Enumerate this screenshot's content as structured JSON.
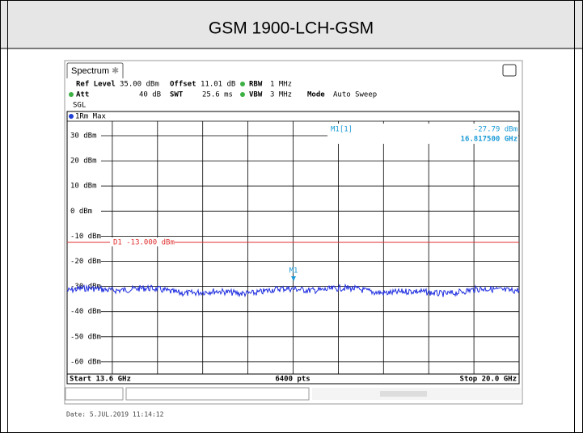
{
  "header": {
    "title": "GSM 1900-LCH-GSM"
  },
  "spectrum": {
    "tab": "Spectrum",
    "settings": [
      {
        "label": "Ref Level",
        "value": "35.00 dBm"
      },
      {
        "label": "Offset",
        "value": "11.01 dB"
      },
      {
        "label": "RBW",
        "value": "1 MHz"
      },
      {
        "label": "Att",
        "value": "40 dB"
      },
      {
        "label": "SWT",
        "value": "25.6 ms"
      },
      {
        "label": "VBW",
        "value": "3 MHz"
      },
      {
        "label": "Mode",
        "value": "Auto Sweep"
      }
    ],
    "sweep": "SGL",
    "trace_label": "1Rm Max",
    "y_labels": [
      "30 dBm",
      "20 dBm",
      "10 dBm",
      "0 dBm",
      "-10 dBm",
      "-20 dBm",
      "-30 dBm",
      "-40 dBm",
      "-50 dBm",
      "-60 dBm"
    ],
    "display_line": "D1 -13.000 dBm",
    "marker": "M1",
    "marker_readout": {
      "name": "M1[1]",
      "level": "-27.79 dBm",
      "frequency": "16.817500 GHz"
    },
    "start": "Start 13.6 GHz",
    "points": "6400 pts",
    "stop": "Stop 20.0 GHz"
  },
  "date": "Date: 5.JUL.2019  11:14:12"
}
